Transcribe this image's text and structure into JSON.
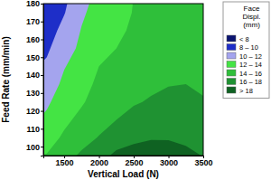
{
  "chart_data": {
    "type": "contour",
    "x_label": "Vertical Load (N)",
    "y_label": "Feed Rate (mm/min)",
    "x": [
      1250,
      1500,
      1750,
      2000,
      2250,
      2500,
      2750,
      3000,
      3250,
      3500
    ],
    "y": [
      95,
      105,
      115,
      125,
      135,
      145,
      155,
      165,
      175,
      185
    ],
    "z": [
      [
        14.1,
        15.3,
        16.3,
        17.5,
        18.3,
        18.55,
        18.65,
        18.6,
        18.35,
        17.95
      ],
      [
        13.2,
        14.3,
        15.3,
        16.1,
        17.3,
        17.7,
        17.9,
        17.9,
        17.7,
        17.3
      ],
      [
        12.4,
        13.6,
        14.5,
        15.3,
        16.0,
        16.7,
        17.1,
        17.2,
        17.05,
        16.75
      ],
      [
        11.7,
        13.0,
        13.8,
        14.8,
        15.4,
        15.8,
        16.2,
        16.6,
        16.5,
        16.15
      ],
      [
        11.0,
        12.4,
        13.3,
        14.4,
        14.8,
        15.1,
        15.6,
        15.9,
        16.0,
        15.7
      ],
      [
        10.3,
        11.9,
        12.8,
        14.0,
        14.3,
        14.6,
        15.1,
        15.5,
        15.6,
        15.35
      ],
      [
        9.7,
        11.2,
        12.4,
        13.6,
        14.0,
        14.3,
        14.8,
        15.2,
        15.3,
        15.15
      ],
      [
        9.1,
        10.6,
        12.1,
        13.2,
        13.8,
        14.15,
        14.65,
        15.0,
        15.1,
        15.0
      ],
      [
        8.6,
        9.9,
        11.7,
        12.8,
        13.6,
        14.05,
        14.55,
        14.9,
        14.95,
        14.95
      ],
      [
        8.2,
        9.5,
        11.2,
        12.5,
        13.4,
        14.0,
        14.5,
        14.8,
        14.9,
        14.9
      ]
    ],
    "levels": [
      8,
      10,
      12,
      14,
      16,
      18
    ],
    "colors": [
      "#0a1470",
      "#1e2ec8",
      "#a4a4ee",
      "#44e444",
      "#2fbf3a",
      "#1f9232",
      "#0f6222"
    ],
    "colorbar_title": [
      "Face",
      "Displ.",
      "(mm)"
    ],
    "colorbar_labels": [
      "< 8",
      "8 – 10",
      "10 – 12",
      "12 – 14",
      "14 – 16",
      "16 – 18",
      "> 18"
    ],
    "xlim": [
      1200,
      3500
    ],
    "ylim": [
      95,
      180
    ],
    "xticks": [
      1500,
      2000,
      2500,
      3000,
      3500
    ],
    "yticks": [
      100,
      110,
      120,
      130,
      140,
      150,
      160,
      170,
      180
    ]
  }
}
